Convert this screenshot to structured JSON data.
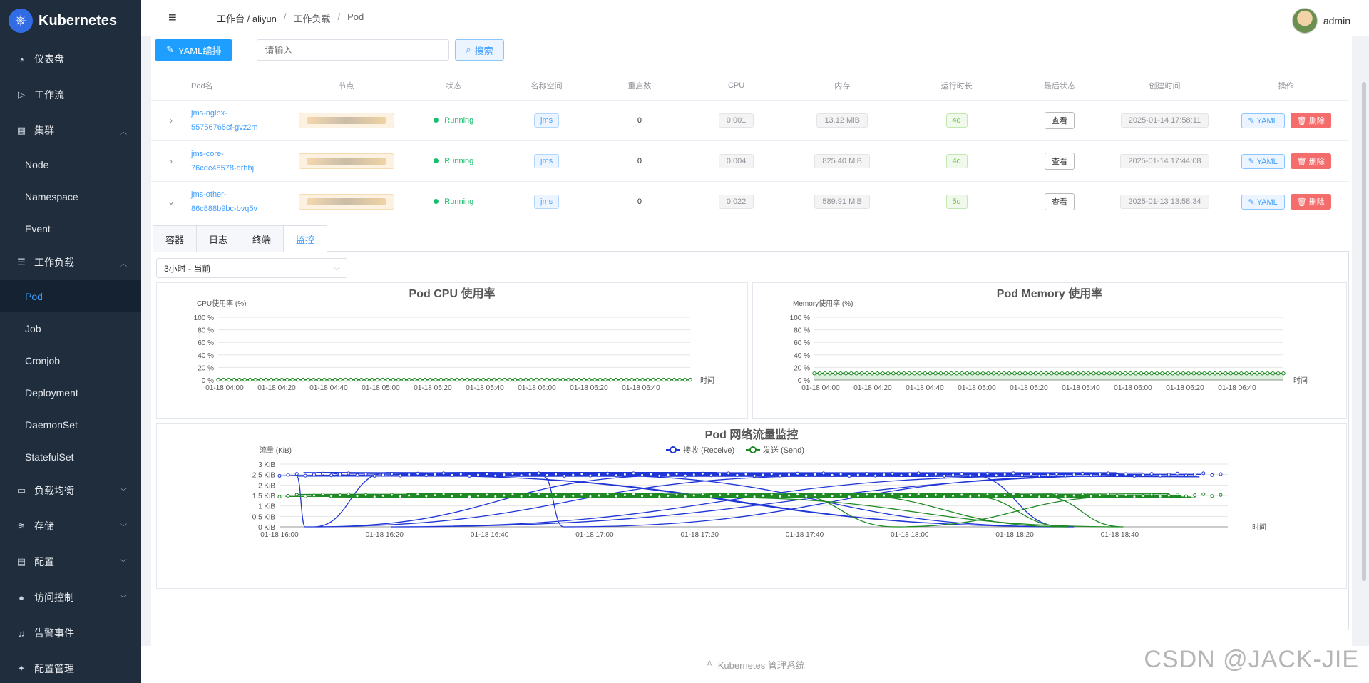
{
  "app": {
    "title": "Kubernetes",
    "footer": "Kubernetes 管理系统",
    "watermark": "CSDN @JACK-JIE"
  },
  "sidebar": {
    "items": [
      {
        "label": "仪表盘",
        "icon": "dashboard-icon"
      },
      {
        "label": "工作流",
        "icon": "play-circle-icon"
      },
      {
        "label": "集群",
        "icon": "grid-icon",
        "expanded": true,
        "children": [
          "Node",
          "Namespace",
          "Event"
        ]
      },
      {
        "label": "工作负载",
        "icon": "sliders-icon",
        "expanded": true,
        "children": [
          "Pod",
          "Job",
          "Cronjob",
          "Deployment",
          "DaemonSet",
          "StatefulSet"
        ],
        "active_child": "Pod"
      },
      {
        "label": "负载均衡",
        "icon": "briefcase-icon"
      },
      {
        "label": "存储",
        "icon": "database-icon"
      },
      {
        "label": "配置",
        "icon": "document-icon"
      },
      {
        "label": "访问控制",
        "icon": "user-icon"
      },
      {
        "label": "告警事件",
        "icon": "bell-icon"
      },
      {
        "label": "配置管理",
        "icon": "settings-icon"
      }
    ]
  },
  "header": {
    "breadcrumb": [
      "工作台 / aliyun",
      "工作负载",
      "Pod"
    ],
    "user": "admin"
  },
  "toolbar": {
    "yaml_label": "YAML编排",
    "search_placeholder": "请输入",
    "search_label": "搜索"
  },
  "table": {
    "columns": [
      "Pod名",
      "节点",
      "状态",
      "名称空间",
      "重启数",
      "CPU",
      "内存",
      "运行时长",
      "最后状态",
      "创建时间",
      "操作"
    ],
    "rows": [
      {
        "name": "jms-nginx-55756765cf-gvz2m",
        "name_l1": "jms-nginx-",
        "name_l2": "55756765cf-gvz2m",
        "status": "Running",
        "namespace": "jms",
        "restarts": "0",
        "cpu": "0.001",
        "memory": "13.12 MiB",
        "age": "4d",
        "last_state": "查看",
        "created": "2025-01-14 17:58:11",
        "expanded": false
      },
      {
        "name": "jms-core-76cdc48578-qrhhj",
        "name_l1": "jms-core-",
        "name_l2": "76cdc48578-qrhhj",
        "status": "Running",
        "namespace": "jms",
        "restarts": "0",
        "cpu": "0.004",
        "memory": "825.40 MiB",
        "age": "4d",
        "last_state": "查看",
        "created": "2025-01-14 17:44:08",
        "expanded": false
      },
      {
        "name": "jms-other-86c888b9bc-bvq5v",
        "name_l1": "jms-other-",
        "name_l2": "86c888b9bc-bvq5v",
        "status": "Running",
        "namespace": "jms",
        "restarts": "0",
        "cpu": "0.022",
        "memory": "589.91 MiB",
        "age": "5d",
        "last_state": "查看",
        "created": "2025-01-13 13:58:34",
        "expanded": true
      }
    ],
    "yaml_label": "YAML",
    "delete_label": "删除"
  },
  "tabs": [
    "容器",
    "日志",
    "终端",
    "监控"
  ],
  "active_tab": "监控",
  "range": "3小时 - 当前",
  "colors": {
    "primary": "#1e9fff",
    "running": "#19be6b",
    "danger": "#f56c6c",
    "receive": "#1f35d6",
    "send": "#1e8a24"
  },
  "chart_data": [
    {
      "type": "area",
      "title": "Pod CPU 使用率",
      "ylabel": "CPU使用率 (%)",
      "xlabel": "时间",
      "yticks": [
        "0 %",
        "20 %",
        "40 %",
        "60 %",
        "80 %",
        "100 %"
      ],
      "ylim": [
        0,
        100
      ],
      "xticks": [
        "01-18 04:00",
        "01-18 04:20",
        "01-18 04:40",
        "01-18 05:00",
        "01-18 05:20",
        "01-18 05:40",
        "01-18 06:00",
        "01-18 06:20",
        "01-18 06:40"
      ],
      "x_range": [
        "01-18 04:00",
        "01-18 06:58"
      ],
      "series": [
        {
          "values_constant": 0.5,
          "points": 90
        }
      ]
    },
    {
      "type": "area",
      "title": "Pod Memory 使用率",
      "ylabel": "Memory使用率 (%)",
      "xlabel": "时间",
      "yticks": [
        "0 %",
        "20 %",
        "40 %",
        "60 %",
        "80 %",
        "100 %"
      ],
      "ylim": [
        0,
        100
      ],
      "xticks": [
        "01-18 04:00",
        "01-18 04:20",
        "01-18 04:40",
        "01-18 05:00",
        "01-18 05:20",
        "01-18 05:40",
        "01-18 06:00",
        "01-18 06:20",
        "01-18 06:40"
      ],
      "x_range": [
        "01-18 04:00",
        "01-18 06:58"
      ],
      "series": [
        {
          "values_constant": 10.5,
          "points": 90
        }
      ]
    },
    {
      "type": "line",
      "title": "Pod 网络流量监控",
      "ylabel": "流量 (KiB)",
      "xlabel": "时间",
      "yticks": [
        "0 KiB",
        "0.5 KiB",
        "1 KiB",
        "1.5 KiB",
        "2 KiB",
        "2.5 KiB",
        "3 KiB"
      ],
      "ylim": [
        0,
        3
      ],
      "xticks": [
        "01-18 16:00",
        "01-18 16:20",
        "01-18 16:40",
        "01-18 17:00",
        "01-18 17:20",
        "01-18 17:40",
        "01-18 18:00",
        "01-18 18:20",
        "01-18 18:40"
      ],
      "x_range": [
        "01-18 16:00",
        "01-18 18:58"
      ],
      "legend_position": "top-center",
      "series": [
        {
          "name": "接收 (Receive)",
          "typical": 2.5,
          "range": [
            0,
            2.6
          ]
        },
        {
          "name": "发送 (Send)",
          "typical": 1.5,
          "range": [
            0,
            1.7
          ]
        }
      ]
    }
  ]
}
